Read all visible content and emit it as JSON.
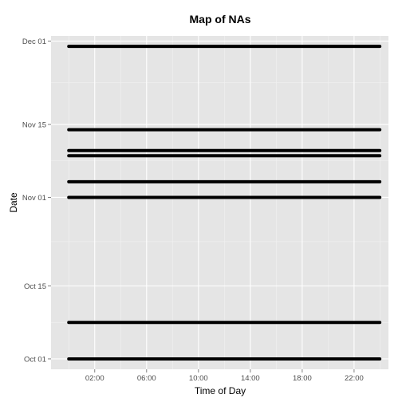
{
  "chart_data": {
    "type": "line",
    "title": "Map of NAs",
    "xlabel": "Time of Day",
    "ylabel": "Date",
    "x_ticks": [
      "02:00",
      "06:00",
      "10:00",
      "14:00",
      "18:00",
      "22:00"
    ],
    "y_ticks": [
      "Oct 01",
      "Oct 15",
      "Nov 01",
      "Nov 15",
      "Dec 01"
    ],
    "xlim": [
      "00:00",
      "24:00"
    ],
    "ylim": [
      "2013-09-29",
      "2013-12-02"
    ],
    "grid": true,
    "series": [
      {
        "date": "2013-10-01",
        "x": [
          "00:00",
          "23:59"
        ]
      },
      {
        "date": "2013-10-08",
        "x": [
          "00:00",
          "23:59"
        ]
      },
      {
        "date": "2013-11-01",
        "x": [
          "00:00",
          "23:59"
        ]
      },
      {
        "date": "2013-11-04",
        "x": [
          "00:00",
          "23:59"
        ]
      },
      {
        "date": "2013-11-09",
        "x": [
          "00:00",
          "23:59"
        ]
      },
      {
        "date": "2013-11-10",
        "x": [
          "00:00",
          "23:59"
        ]
      },
      {
        "date": "2013-11-14",
        "x": [
          "00:00",
          "23:59"
        ]
      },
      {
        "date": "2013-11-30",
        "x": [
          "00:00",
          "23:59"
        ]
      }
    ],
    "colors": {
      "panel": "#e5e5e5",
      "grid_major": "#ffffff",
      "grid_minor": "#f2f2f2",
      "line": "#000000"
    }
  }
}
